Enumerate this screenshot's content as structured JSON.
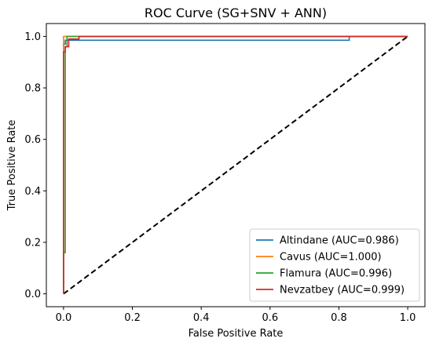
{
  "chart_data": {
    "type": "line",
    "title": "ROC Curve (SG+SNV + ANN)",
    "xlabel": "False Positive Rate",
    "ylabel": "True Positive Rate",
    "xlim": [
      -0.05,
      1.05
    ],
    "ylim": [
      -0.05,
      1.05
    ],
    "x_ticks": [
      0.0,
      0.2,
      0.4,
      0.6,
      0.8,
      1.0
    ],
    "y_ticks": [
      0.0,
      0.2,
      0.4,
      0.6,
      0.8,
      1.0
    ],
    "x_tick_labels": [
      "0.0",
      "0.2",
      "0.4",
      "0.6",
      "0.8",
      "1.0"
    ],
    "y_tick_labels": [
      "0.0",
      "0.2",
      "0.4",
      "0.6",
      "0.8",
      "1.0"
    ],
    "grid": false,
    "legend_position": "lower-right",
    "series": [
      {
        "name": "Altindane (AUC=0.986)",
        "color": "#1f77b4",
        "x": [
          0.0,
          0.0,
          0.005,
          0.005,
          0.83,
          0.83,
          1.0
        ],
        "y": [
          0.0,
          0.97,
          0.97,
          0.985,
          0.985,
          1.0,
          1.0
        ]
      },
      {
        "name": "Cavus (AUC=1.000)",
        "color": "#ff7f0e",
        "x": [
          0.0,
          0.0,
          1.0
        ],
        "y": [
          0.0,
          1.0,
          1.0
        ]
      },
      {
        "name": "Flamura (AUC=0.996)",
        "color": "#2ca02c",
        "x": [
          0.0,
          0.0,
          0.005,
          0.005,
          0.01,
          0.01,
          1.0
        ],
        "y": [
          0.0,
          0.16,
          0.16,
          0.96,
          0.96,
          1.0,
          1.0
        ]
      },
      {
        "name": "Nevzatbey (AUC=0.999)",
        "color": "#d62728",
        "x": [
          0.0,
          0.0,
          0.005,
          0.005,
          0.015,
          0.015,
          0.045,
          0.045,
          1.0
        ],
        "y": [
          0.0,
          0.94,
          0.94,
          0.96,
          0.96,
          0.99,
          0.99,
          1.0,
          1.0
        ]
      }
    ],
    "reference_line": {
      "x": [
        0.0,
        1.0
      ],
      "y": [
        0.0,
        1.0
      ],
      "color": "#000000",
      "style": "dashed"
    }
  }
}
